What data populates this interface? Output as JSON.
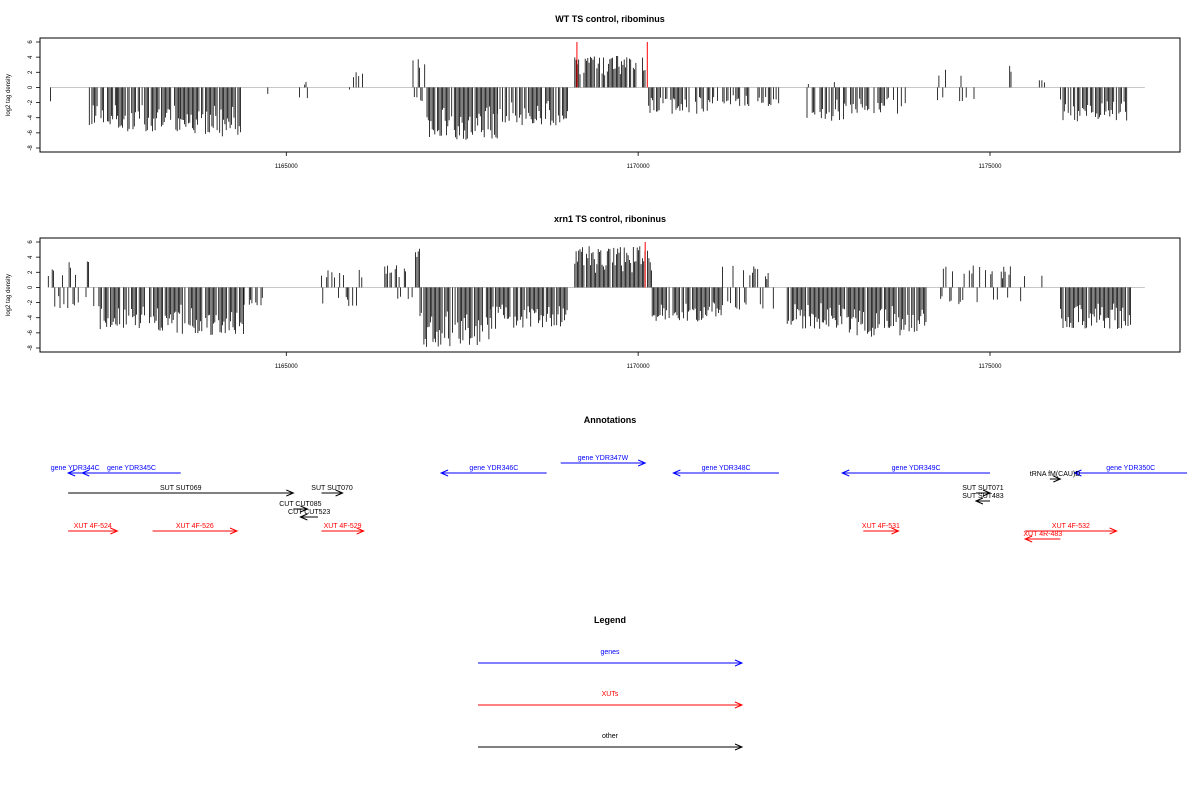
{
  "colors": {
    "genes": "#0000ff",
    "XUTs": "#ff0000",
    "other": "#000000",
    "baseline": "#bfbfbf",
    "highlight": "#ff0000"
  },
  "chart_data": [
    {
      "type": "bar",
      "title": "WT TS control, ribominus",
      "ylabel": "log2 tag density",
      "xlim": [
        1161500,
        1177700
      ],
      "ylim": [
        -8,
        6
      ],
      "xticks": [
        "1165000",
        "1170000",
        "1175000"
      ],
      "yticks": [
        "6",
        "4",
        "2",
        "0",
        "-2",
        "-4",
        "-6",
        "-8"
      ],
      "highlight_x": [
        1169130,
        1170130
      ],
      "segments": [
        {
          "from": 1161650,
          "to": 1161800,
          "lo": -2,
          "hi": 1.5,
          "density": 0.15
        },
        {
          "from": 1162100,
          "to": 1162200,
          "lo": 0,
          "hi": 2.2,
          "density": 0.2
        },
        {
          "from": 1162200,
          "to": 1162600,
          "lo": -5,
          "hi": 0,
          "density": 0.7
        },
        {
          "from": 1162600,
          "to": 1163500,
          "lo": -5.8,
          "hi": 0,
          "density": 0.8
        },
        {
          "from": 1163500,
          "to": 1164400,
          "lo": -6.5,
          "hi": 0,
          "density": 0.85
        },
        {
          "from": 1164700,
          "to": 1164750,
          "lo": -1,
          "hi": 0,
          "density": 0.3
        },
        {
          "from": 1165150,
          "to": 1165300,
          "lo": -1.5,
          "hi": 1,
          "density": 0.2
        },
        {
          "from": 1165500,
          "to": 1165600,
          "lo": 0,
          "hi": 2.5,
          "density": 0.2
        },
        {
          "from": 1165900,
          "to": 1166100,
          "lo": -0.5,
          "hi": 2,
          "density": 0.2
        },
        {
          "from": 1166800,
          "to": 1167000,
          "lo": -2,
          "hi": 4,
          "density": 0.35
        },
        {
          "from": 1167000,
          "to": 1168000,
          "lo": -7,
          "hi": 0,
          "density": 0.85
        },
        {
          "from": 1168000,
          "to": 1169000,
          "lo": -5,
          "hi": 0,
          "density": 0.8
        },
        {
          "from": 1169100,
          "to": 1170100,
          "lo": 0,
          "hi": 4.2,
          "density": 0.75
        },
        {
          "from": 1170150,
          "to": 1171000,
          "lo": -3.5,
          "hi": 0,
          "density": 0.7
        },
        {
          "from": 1171000,
          "to": 1172000,
          "lo": -2.5,
          "hi": 0,
          "density": 0.55
        },
        {
          "from": 1172400,
          "to": 1173000,
          "lo": -4.5,
          "hi": 1,
          "density": 0.6
        },
        {
          "from": 1173000,
          "to": 1173800,
          "lo": -3.5,
          "hi": 0,
          "density": 0.65
        },
        {
          "from": 1174200,
          "to": 1174800,
          "lo": -2,
          "hi": 2.5,
          "density": 0.3
        },
        {
          "from": 1174800,
          "to": 1175400,
          "lo": 0,
          "hi": 3.5,
          "density": 0.2
        },
        {
          "from": 1175700,
          "to": 1175800,
          "lo": 0,
          "hi": 1,
          "density": 0.2
        },
        {
          "from": 1176000,
          "to": 1177000,
          "lo": -4.5,
          "hi": 0,
          "density": 0.7
        }
      ]
    },
    {
      "type": "bar",
      "title": "xrn1 TS control, riboninus",
      "ylabel": "log2 tag density",
      "xlim": [
        1161500,
        1177700
      ],
      "ylim": [
        -8,
        6
      ],
      "xticks": [
        "1165000",
        "1170000",
        "1175000"
      ],
      "yticks": [
        "6",
        "4",
        "2",
        "0",
        "-2",
        "-4",
        "-6",
        "-8"
      ],
      "highlight_x": [
        1170100
      ],
      "segments": [
        {
          "from": 1161600,
          "to": 1162300,
          "lo": -3,
          "hi": 3.5,
          "density": 0.5
        },
        {
          "from": 1162300,
          "to": 1163300,
          "lo": -5.8,
          "hi": 0,
          "density": 0.85
        },
        {
          "from": 1163300,
          "to": 1164400,
          "lo": -6.3,
          "hi": 0,
          "density": 0.9
        },
        {
          "from": 1164400,
          "to": 1164700,
          "lo": -2.5,
          "hi": 0,
          "density": 0.4
        },
        {
          "from": 1165500,
          "to": 1166100,
          "lo": -2.5,
          "hi": 2.5,
          "density": 0.35
        },
        {
          "from": 1166400,
          "to": 1166800,
          "lo": -2,
          "hi": 3,
          "density": 0.45
        },
        {
          "from": 1166800,
          "to": 1166900,
          "lo": 0,
          "hi": 5.5,
          "density": 0.3
        },
        {
          "from": 1166900,
          "to": 1167900,
          "lo": -8,
          "hi": 0,
          "density": 0.9
        },
        {
          "from": 1167900,
          "to": 1169000,
          "lo": -5.5,
          "hi": 0,
          "density": 0.85
        },
        {
          "from": 1169100,
          "to": 1170200,
          "lo": 0,
          "hi": 5.5,
          "density": 0.95
        },
        {
          "from": 1170200,
          "to": 1171200,
          "lo": -4.5,
          "hi": 0,
          "density": 0.85
        },
        {
          "from": 1171200,
          "to": 1172000,
          "lo": -3,
          "hi": 3,
          "density": 0.5
        },
        {
          "from": 1172100,
          "to": 1173000,
          "lo": -5.5,
          "hi": 0,
          "density": 0.9
        },
        {
          "from": 1173000,
          "to": 1174100,
          "lo": -6.5,
          "hi": 0,
          "density": 0.9
        },
        {
          "from": 1174300,
          "to": 1174900,
          "lo": -2.5,
          "hi": 3.5,
          "density": 0.55
        },
        {
          "from": 1174900,
          "to": 1175500,
          "lo": -2,
          "hi": 3,
          "density": 0.45
        },
        {
          "from": 1175700,
          "to": 1175800,
          "lo": 0,
          "hi": 2,
          "density": 0.3
        },
        {
          "from": 1176000,
          "to": 1177000,
          "lo": -5.5,
          "hi": 0,
          "density": 0.85
        }
      ]
    }
  ],
  "annotations": {
    "title": "Annotations",
    "features": [
      {
        "label": "gene YDR344C",
        "kind": "genes",
        "start": 1162100,
        "end": 1161900,
        "row": 1
      },
      {
        "label": "gene YDR345C",
        "kind": "genes",
        "start": 1163500,
        "end": 1162100,
        "row": 1
      },
      {
        "label": "gene YDR346C",
        "kind": "genes",
        "start": 1168700,
        "end": 1167200,
        "row": 1
      },
      {
        "label": "gene YDR347W",
        "kind": "genes",
        "start": 1168900,
        "end": 1170100,
        "row": 0
      },
      {
        "label": "gene YDR348C",
        "kind": "genes",
        "start": 1172000,
        "end": 1170500,
        "row": 1
      },
      {
        "label": "gene YDR349C",
        "kind": "genes",
        "start": 1175000,
        "end": 1172900,
        "row": 1
      },
      {
        "label": "gene YDR350C",
        "kind": "genes",
        "start": 1177800,
        "end": 1176200,
        "row": 1
      },
      {
        "label": "tRNA fM(CAU)D",
        "kind": "other",
        "start": 1175850,
        "end": 1176000,
        "row": 1.6
      },
      {
        "label": "SUT SUT069",
        "kind": "other",
        "start": 1161900,
        "end": 1165100,
        "row": 3
      },
      {
        "label": "SUT SUT070",
        "kind": "other",
        "start": 1165500,
        "end": 1165800,
        "row": 3
      },
      {
        "label": "CUT CUT085",
        "kind": "other",
        "start": 1165100,
        "end": 1165300,
        "row": 4.6
      },
      {
        "label": "CUT CUT523",
        "kind": "other",
        "start": 1165450,
        "end": 1165200,
        "row": 5.4
      },
      {
        "label": "SUT SUT071",
        "kind": "other",
        "start": 1174800,
        "end": 1175000,
        "row": 3
      },
      {
        "label": "SUT SUT483",
        "kind": "other",
        "start": 1175000,
        "end": 1174800,
        "row": 3.8
      },
      {
        "label": "XUT 4F-524",
        "kind": "XUTs",
        "start": 1161900,
        "end": 1162600,
        "row": 6.8
      },
      {
        "label": "XUT 4F-526",
        "kind": "XUTs",
        "start": 1163100,
        "end": 1164300,
        "row": 6.8
      },
      {
        "label": "XUT 4F-529",
        "kind": "XUTs",
        "start": 1165500,
        "end": 1166100,
        "row": 6.8
      },
      {
        "label": "XUT 4F-531",
        "kind": "XUTs",
        "start": 1173200,
        "end": 1173700,
        "row": 6.8
      },
      {
        "label": "XUT 4F-532",
        "kind": "XUTs",
        "start": 1175500,
        "end": 1176800,
        "row": 6.8
      },
      {
        "label": "XUT 4R-483",
        "kind": "XUTs",
        "start": 1176000,
        "end": 1175500,
        "row": 7.6
      }
    ]
  },
  "legend": {
    "title": "Legend",
    "items": [
      {
        "label": "genes",
        "kind": "genes"
      },
      {
        "label": "XUTs",
        "kind": "XUTs"
      },
      {
        "label": "other",
        "kind": "other"
      }
    ]
  }
}
